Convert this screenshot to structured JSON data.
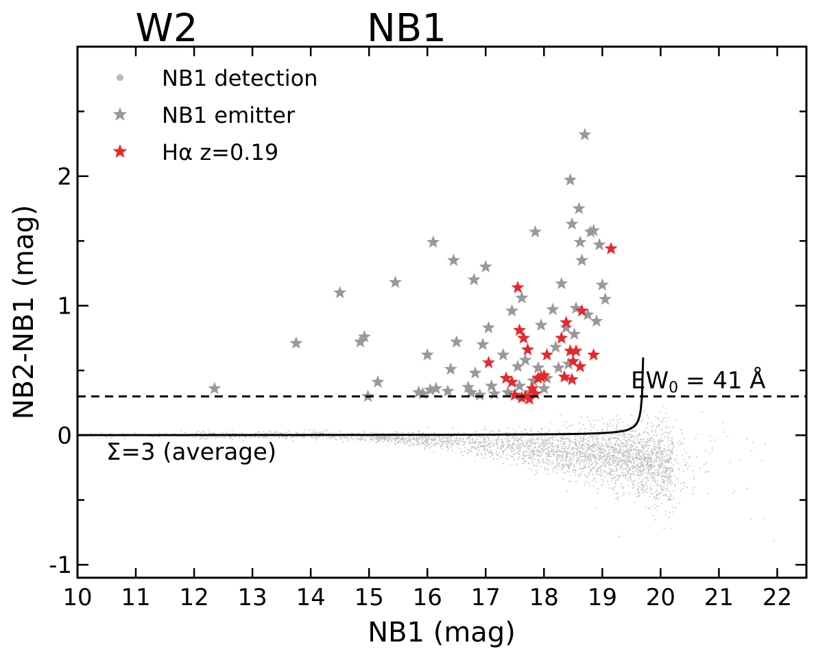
{
  "top_labels": [
    "W2",
    "NB1"
  ],
  "chart_data": {
    "type": "scatter",
    "xlabel": "NB1 (mag)",
    "ylabel": "NB2-NB1 (mag)",
    "xlim": [
      10,
      22.5
    ],
    "ylim": [
      -1.1,
      3.0
    ],
    "xticks": [
      10,
      11,
      12,
      13,
      14,
      15,
      16,
      17,
      18,
      19,
      20,
      21,
      22
    ],
    "yticks": [
      -1,
      0,
      1,
      2
    ],
    "ytick_labels": [
      "-1",
      "0",
      "1",
      "2"
    ],
    "legend_position": "top-left",
    "legend": [
      {
        "label": "NB1 detection",
        "marker": "dot",
        "color": "#b8b8b8"
      },
      {
        "label": "NB1 emitter",
        "marker": "star",
        "color": "#999999"
      },
      {
        "label": "Hα z=0.19",
        "marker": "star",
        "color": "#e8262b"
      }
    ],
    "detection_cloud": {
      "note_free": true,
      "color": "#bdbdbd",
      "mag_range": [
        10.2,
        22.3
      ],
      "peak_mag": 20.2,
      "mean_color_at_bright": 0.0,
      "mean_color_at_faint": -0.3
    },
    "emitters": {
      "color": "#999999",
      "points": [
        [
          12.35,
          0.36
        ],
        [
          13.75,
          0.71
        ],
        [
          14.5,
          1.1
        ],
        [
          14.85,
          0.72
        ],
        [
          14.92,
          0.76
        ],
        [
          14.98,
          0.3
        ],
        [
          15.15,
          0.41
        ],
        [
          15.45,
          1.18
        ],
        [
          15.85,
          0.33
        ],
        [
          15.92,
          0.32
        ],
        [
          16.0,
          0.62
        ],
        [
          16.05,
          0.35
        ],
        [
          16.1,
          1.49
        ],
        [
          16.15,
          0.36
        ],
        [
          16.35,
          0.34
        ],
        [
          16.4,
          0.51
        ],
        [
          16.45,
          1.35
        ],
        [
          16.5,
          0.72
        ],
        [
          16.7,
          0.37
        ],
        [
          16.75,
          0.33
        ],
        [
          16.8,
          1.2
        ],
        [
          16.82,
          0.48
        ],
        [
          16.9,
          0.31
        ],
        [
          16.95,
          0.7
        ],
        [
          17.0,
          1.3
        ],
        [
          17.05,
          0.83
        ],
        [
          17.1,
          0.38
        ],
        [
          17.15,
          0.32
        ],
        [
          17.3,
          0.62
        ],
        [
          17.38,
          0.33
        ],
        [
          17.45,
          0.96
        ],
        [
          17.5,
          0.31
        ],
        [
          17.55,
          0.53
        ],
        [
          17.58,
          0.38
        ],
        [
          17.62,
          1.06
        ],
        [
          17.68,
          0.58
        ],
        [
          17.75,
          0.33
        ],
        [
          17.82,
          0.42
        ],
        [
          17.85,
          1.57
        ],
        [
          17.9,
          0.52
        ],
        [
          17.95,
          0.85
        ],
        [
          18.0,
          0.36
        ],
        [
          18.05,
          0.44
        ],
        [
          18.15,
          0.97
        ],
        [
          18.2,
          0.68
        ],
        [
          18.25,
          0.52
        ],
        [
          18.3,
          1.17
        ],
        [
          18.38,
          0.83
        ],
        [
          18.42,
          0.55
        ],
        [
          18.45,
          1.97
        ],
        [
          18.48,
          1.63
        ],
        [
          18.52,
          0.78
        ],
        [
          18.55,
          0.98
        ],
        [
          18.6,
          1.75
        ],
        [
          18.62,
          1.49
        ],
        [
          18.65,
          1.35
        ],
        [
          18.7,
          2.32
        ],
        [
          18.75,
          0.93
        ],
        [
          18.8,
          1.57
        ],
        [
          18.85,
          1.58
        ],
        [
          18.9,
          0.88
        ],
        [
          18.95,
          1.47
        ],
        [
          19.0,
          1.16
        ],
        [
          19.05,
          1.05
        ]
      ]
    },
    "halpha": {
      "color": "#e8262b",
      "points": [
        [
          17.05,
          0.56
        ],
        [
          17.35,
          0.44
        ],
        [
          17.45,
          0.41
        ],
        [
          17.5,
          0.31
        ],
        [
          17.55,
          1.14
        ],
        [
          17.58,
          0.81
        ],
        [
          17.62,
          0.29
        ],
        [
          17.65,
          0.75
        ],
        [
          17.68,
          0.3
        ],
        [
          17.72,
          0.66
        ],
        [
          17.75,
          0.28
        ],
        [
          17.8,
          0.36
        ],
        [
          17.85,
          0.32
        ],
        [
          17.9,
          0.44
        ],
        [
          17.95,
          0.45
        ],
        [
          18.0,
          0.46
        ],
        [
          18.05,
          0.62
        ],
        [
          18.3,
          0.75
        ],
        [
          18.35,
          0.45
        ],
        [
          18.38,
          0.87
        ],
        [
          18.45,
          0.65
        ],
        [
          18.48,
          0.43
        ],
        [
          18.5,
          0.57
        ],
        [
          18.55,
          0.65
        ],
        [
          18.62,
          0.53
        ],
        [
          18.65,
          0.96
        ],
        [
          18.85,
          0.62
        ],
        [
          19.15,
          1.44
        ]
      ]
    },
    "threshold_line": {
      "y": 0.3,
      "label_main": "EW",
      "label_sub": "0",
      "label_rest": " = 41 Å"
    },
    "sigma_curve": {
      "label": "Σ=3 (average)",
      "asymptote_x": 19.72
    }
  }
}
